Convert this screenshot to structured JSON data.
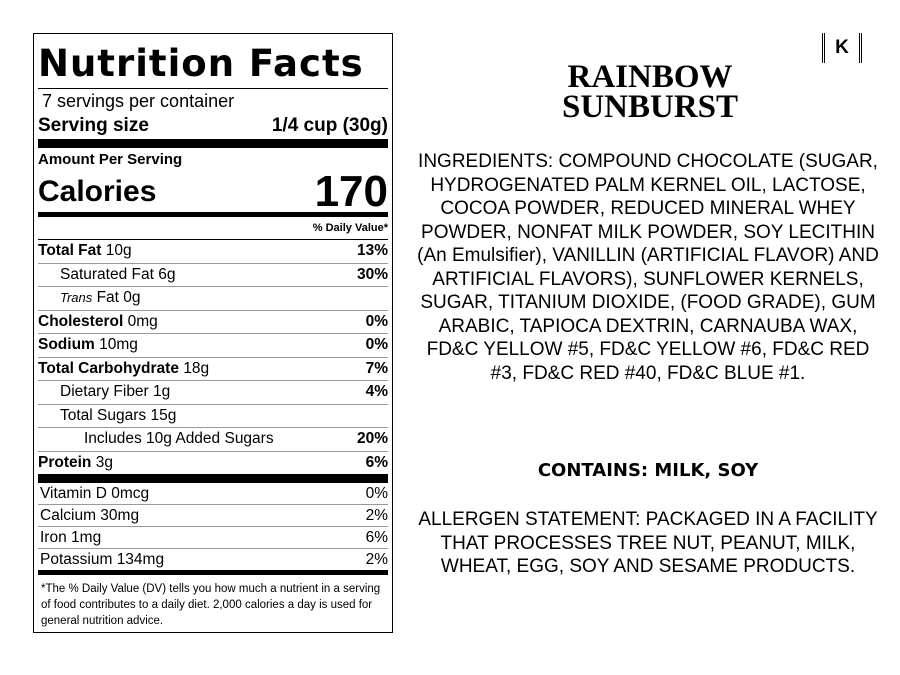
{
  "label": {
    "title": "Nutrition Facts",
    "servings": "7 servings per container",
    "serving_size_label": "Serving size",
    "serving_size": "1/4 cup (30g)",
    "amount_per_serving": "Amount Per Serving",
    "calories_label": "Calories",
    "calories": "170",
    "dv_header": "% Daily Value*",
    "nutrients": [
      {
        "name": "Total Fat",
        "amount": "10g",
        "dv": "13%"
      },
      {
        "name": "Saturated Fat",
        "amount": "6g",
        "dv": "30%"
      },
      {
        "prefix": "Trans",
        "name": "Fat",
        "amount": "0g"
      },
      {
        "name": "Cholesterol",
        "amount": "0mg",
        "dv": "0%"
      },
      {
        "name": "Sodium",
        "amount": "10mg",
        "dv": "0%"
      },
      {
        "name": "Total Carbohydrate",
        "amount": "18g",
        "dv": "7%"
      },
      {
        "name": "Dietary Fiber",
        "amount": "1g",
        "dv": "4%"
      },
      {
        "name": "Total Sugars",
        "amount": "15g"
      },
      {
        "name": "Includes 10g Added Sugars",
        "dv": "20%"
      },
      {
        "name": "Protein",
        "amount": "3g",
        "dv": "6%"
      }
    ],
    "vitamins": [
      {
        "name": "Vitamin D",
        "amount": "0mcg",
        "dv": "0%"
      },
      {
        "name": "Calcium",
        "amount": "30mg",
        "dv": "2%"
      },
      {
        "name": "Iron",
        "amount": "1mg",
        "dv": "6%"
      },
      {
        "name": "Potassium",
        "amount": "134mg",
        "dv": "2%"
      }
    ],
    "footnote": "*The % Daily Value (DV) tells you how much a nutrient in a serving of food contributes to a daily diet. 2,000 calories a day is used for general nutrition advice."
  },
  "product": {
    "kosher": "K",
    "title": [
      "RAINBOW",
      "SUNBURST"
    ],
    "ingredients": "INGREDIENTS: COMPOUND CHOCOLATE (SUGAR, HYDROGENATED PALM KERNEL OIL, LACTOSE, COCOA POWDER, REDUCED MINERAL WHEY POWDER, NONFAT MILK POWDER, SOY LECITHIN (An Emulsifier), VANILLIN (ARTIFICIAL FLAVOR) AND ARTIFICIAL FLAVORS), SUNFLOWER KERNELS, SUGAR, TITANIUM DIOXIDE, (FOOD GRADE), GUM ARABIC, TAPIOCA DEXTRIN, CARNAUBA WAX, FD&C YELLOW #5, FD&C YELLOW #6, FD&C RED #3, FD&C RED #40, FD&C BLUE #1.",
    "contains": "CONTAINS: MILK, SOY",
    "allergen": "ALLERGEN STATEMENT: PACKAGED IN A FACILITY THAT PROCESSES TREE NUT, PEANUT, MILK, WHEAT, EGG, SOY AND SESAME PRODUCTS."
  }
}
